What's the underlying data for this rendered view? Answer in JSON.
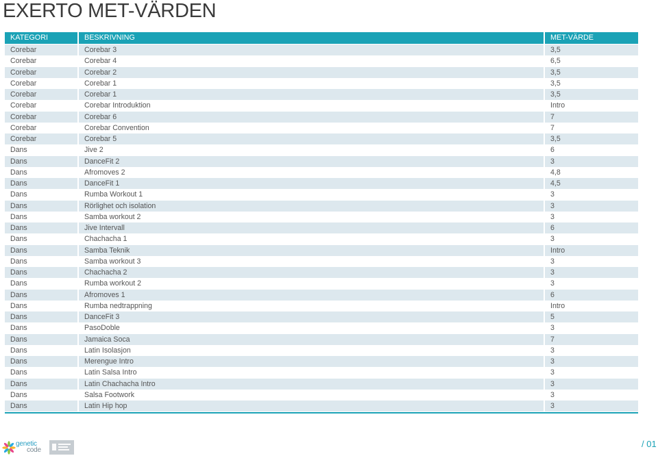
{
  "page": {
    "title": "EXERTO MET-VÄRDEN"
  },
  "colors": {
    "accent": "#1aa2b6",
    "stripe": "#dde8ee",
    "text": "#555555"
  },
  "table": {
    "columns": {
      "kategori": "KATEGORI",
      "beskrivning": "BESKRIVNING",
      "met": "MET-VÄRDE"
    },
    "rows": [
      {
        "kategori": "Corebar",
        "beskrivning": "Corebar 3",
        "met": "3,5"
      },
      {
        "kategori": "Corebar",
        "beskrivning": "Corebar 4",
        "met": "6,5"
      },
      {
        "kategori": "Corebar",
        "beskrivning": "Corebar 2",
        "met": "3,5"
      },
      {
        "kategori": "Corebar",
        "beskrivning": "Corebar 1",
        "met": "3,5"
      },
      {
        "kategori": "Corebar",
        "beskrivning": "Corebar 1",
        "met": "3,5"
      },
      {
        "kategori": "Corebar",
        "beskrivning": "Corebar Introduktion",
        "met": "Intro"
      },
      {
        "kategori": "Corebar",
        "beskrivning": "Corebar 6",
        "met": "7"
      },
      {
        "kategori": "Corebar",
        "beskrivning": "Corebar Convention",
        "met": "7"
      },
      {
        "kategori": "Corebar",
        "beskrivning": "Corebar 5",
        "met": "3,5"
      },
      {
        "kategori": "Dans",
        "beskrivning": "Jive 2",
        "met": "6"
      },
      {
        "kategori": "Dans",
        "beskrivning": "DanceFit 2",
        "met": "3"
      },
      {
        "kategori": "Dans",
        "beskrivning": "Afromoves 2",
        "met": "4,8"
      },
      {
        "kategori": "Dans",
        "beskrivning": "DanceFit 1",
        "met": "4,5"
      },
      {
        "kategori": "Dans",
        "beskrivning": "Rumba Workout 1",
        "met": "3"
      },
      {
        "kategori": "Dans",
        "beskrivning": "Rörlighet och isolation",
        "met": "3"
      },
      {
        "kategori": "Dans",
        "beskrivning": "Samba workout 2",
        "met": "3"
      },
      {
        "kategori": "Dans",
        "beskrivning": "Jive Intervall",
        "met": "6"
      },
      {
        "kategori": "Dans",
        "beskrivning": "Chachacha 1",
        "met": "3"
      },
      {
        "kategori": "Dans",
        "beskrivning": "Samba Teknik",
        "met": "Intro"
      },
      {
        "kategori": "Dans",
        "beskrivning": "Samba workout 3",
        "met": "3"
      },
      {
        "kategori": "Dans",
        "beskrivning": "Chachacha 2",
        "met": "3"
      },
      {
        "kategori": "Dans",
        "beskrivning": "Rumba workout 2",
        "met": "3"
      },
      {
        "kategori": "Dans",
        "beskrivning": "Afromoves 1",
        "met": "6"
      },
      {
        "kategori": "Dans",
        "beskrivning": "Rumba nedtrappning",
        "met": "Intro"
      },
      {
        "kategori": "Dans",
        "beskrivning": "DanceFit 3",
        "met": "5"
      },
      {
        "kategori": "Dans",
        "beskrivning": "PasoDoble",
        "met": "3"
      },
      {
        "kategori": "Dans",
        "beskrivning": "Jamaica Soca",
        "met": "7"
      },
      {
        "kategori": "Dans",
        "beskrivning": "Latin Isolasjon",
        "met": "3"
      },
      {
        "kategori": "Dans",
        "beskrivning": "Merengue Intro",
        "met": "3"
      },
      {
        "kategori": "Dans",
        "beskrivning": "Latin Salsa Intro",
        "met": "3"
      },
      {
        "kategori": "Dans",
        "beskrivning": "Latin Chachacha Intro",
        "met": "3"
      },
      {
        "kategori": "Dans",
        "beskrivning": "Salsa Footwork",
        "met": "3"
      },
      {
        "kategori": "Dans",
        "beskrivning": "Latin Hip hop",
        "met": "3"
      }
    ]
  },
  "footer": {
    "logo_word_1": "genetic",
    "logo_word_2": "code",
    "page_number": "/ 01"
  }
}
